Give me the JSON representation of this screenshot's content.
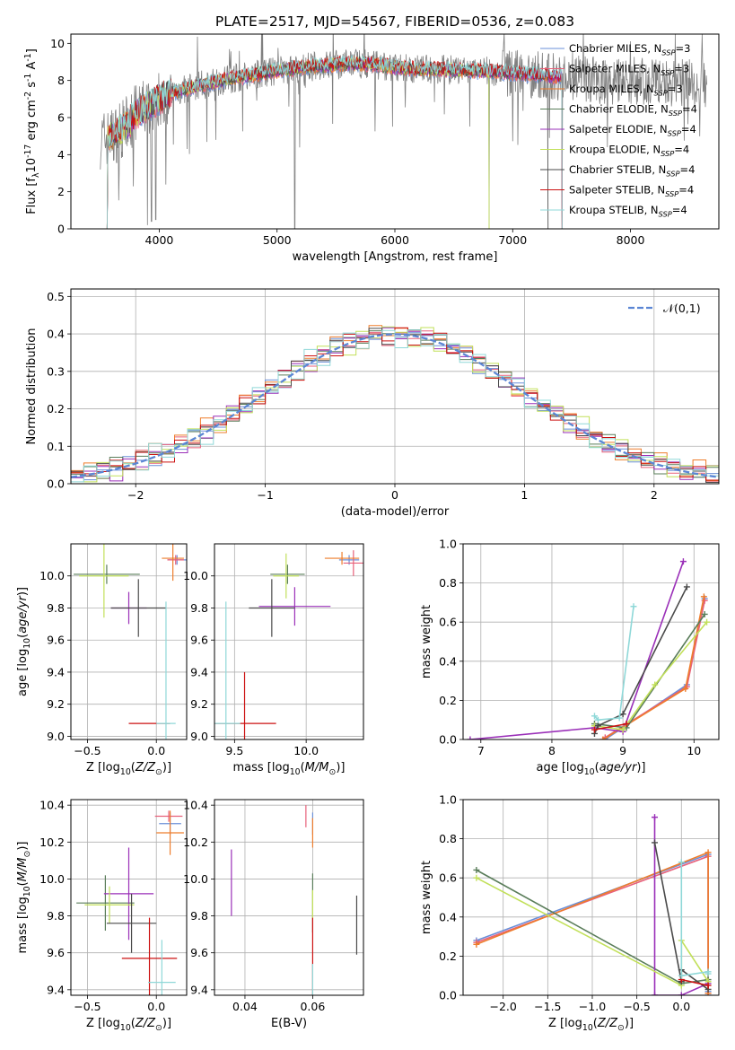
{
  "figure": {
    "title": "PLATE=2517, MJD=54567, FIBERID=0536, z=0.083"
  },
  "colors": {
    "Chabrier MILES": "#6a8fd8",
    "Salpeter MILES": "#e8607a",
    "Kroupa MILES": "#ee7d2c",
    "Chabrier ELODIE": "#5a7d5a",
    "Salpeter ELODIE": "#9a2fb8",
    "Kroupa ELODIE": "#c2e05a",
    "Chabrier STELIB": "#4a4a4a",
    "Salpeter STELIB": "#cc1111",
    "Kroupa STELIB": "#8fd8d8",
    "data": "#808080",
    "normal": "#5b86d4",
    "grid": "#b0b0b0"
  },
  "chart_data": [
    {
      "id": "spectrum",
      "type": "line",
      "title": "PLATE=2517, MJD=54567, FIBERID=0536, z=0.083",
      "xlabel": "wavelength [Angstrom, rest frame]",
      "ylabel": "Flux [f$_\\lambda$10$^{-17}$ erg cm$^{-2}$ s$^{-1}$ A$^{-1}$]",
      "xlim": [
        3250,
        8750
      ],
      "ylim": [
        0,
        10.5
      ],
      "xticks": [
        "4000",
        "5000",
        "6000",
        "7000",
        "8000"
      ],
      "yticks": [
        "0",
        "2",
        "4",
        "6",
        "8",
        "10"
      ],
      "grid": false,
      "legend_position": "right",
      "legend": [
        "Chabrier MILES, N$_{SSP}$=3",
        "Salpeter MILES, N$_{SSP}$=3",
        "Kroupa MILES, N$_{SSP}$=3",
        "Chabrier ELODIE, N$_{SSP}$=4",
        "Salpeter ELODIE, N$_{SSP}$=4",
        "Kroupa ELODIE, N$_{SSP}$=4",
        "Chabrier STELIB, N$_{SSP}$=4",
        "Salpeter STELIB, N$_{SSP}$=4",
        "Kroupa STELIB, N$_{SSP}$=4"
      ],
      "data_range": [
        3500,
        8650
      ],
      "continuum": [
        [
          3500,
          4.8
        ],
        [
          3600,
          5.0
        ],
        [
          3700,
          5.4
        ],
        [
          3800,
          6.2
        ],
        [
          3900,
          6.6
        ],
        [
          4000,
          7.0
        ],
        [
          4100,
          7.3
        ],
        [
          4200,
          7.5
        ],
        [
          4400,
          7.8
        ],
        [
          4600,
          8.1
        ],
        [
          4800,
          8.3
        ],
        [
          5000,
          8.5
        ],
        [
          5200,
          8.7
        ],
        [
          5400,
          8.8
        ],
        [
          5600,
          8.9
        ],
        [
          5800,
          8.9
        ],
        [
          6000,
          8.7
        ],
        [
          6200,
          8.6
        ],
        [
          6400,
          8.6
        ],
        [
          6600,
          8.5
        ],
        [
          6800,
          8.5
        ],
        [
          7000,
          8.4
        ],
        [
          7200,
          8.3
        ],
        [
          7400,
          8.2
        ],
        [
          7600,
          8.1
        ],
        [
          7800,
          8.0
        ],
        [
          8000,
          8.0
        ],
        [
          8200,
          7.9
        ],
        [
          8400,
          7.9
        ],
        [
          8650,
          7.8
        ]
      ],
      "model_ends": [
        7420,
        7420,
        7420,
        7420,
        7420,
        6800,
        7300,
        7420,
        7420
      ],
      "model_starts": [
        3540,
        3540,
        3540,
        3540,
        3540,
        3540,
        3540,
        3540,
        3540
      ],
      "dips": [
        [
          3934,
          0.4
        ],
        [
          3969,
          0.5
        ],
        [
          3900,
          0.2
        ],
        [
          5150,
          0
        ],
        [
          6800,
          0
        ],
        [
          7420,
          0
        ]
      ]
    },
    {
      "id": "residuals",
      "type": "line",
      "xlabel": "(data-model)/error",
      "ylabel": "Normed distribution",
      "xlim": [
        -2.5,
        2.5
      ],
      "ylim": [
        0,
        0.52
      ],
      "xticks": [
        "−2",
        "−1",
        "0",
        "1",
        "2"
      ],
      "yticks": [
        "0.0",
        "0.1",
        "0.2",
        "0.3",
        "0.4",
        "0.5"
      ],
      "grid": true,
      "legend_position": "top-right",
      "legend": [
        "$\\mathcal{N}(0,1)$"
      ],
      "bin_width": 0.1,
      "bin_start": -2.5,
      "noise": [
        0.012,
        -0.008,
        0.018,
        -0.015,
        0.02,
        0.005,
        -0.022,
        0.015,
        -0.01,
        0.025,
        0.008,
        -0.018,
        0.03,
        -0.012,
        0.01,
        0.022,
        -0.025,
        0.014,
        0.006,
        -0.02,
        0.028,
        -0.005,
        0.018,
        -0.014,
        0.032,
        -0.02,
        0.01,
        0.024,
        -0.016,
        0.008,
        0.02,
        -0.028,
        0.016,
        -0.01,
        0.022,
        0.004,
        -0.018,
        0.026,
        -0.012,
        0.014,
        0.02,
        -0.024,
        0.01,
        -0.006,
        0.018,
        0.012,
        -0.02,
        0.024,
        -0.014,
        0.008
      ]
    },
    {
      "id": "age_vs_Z",
      "type": "scatter",
      "xlabel": "Z [log$_{10}$($Z/Z_\\odot$)]",
      "ylabel": "age  [log$_{10}$($age/yr$)]",
      "xlim": [
        -0.62,
        0.22
      ],
      "ylim": [
        8.98,
        10.2
      ],
      "xticks": [
        "−0.5",
        "0.0"
      ],
      "yticks": [
        "9.0",
        "9.2",
        "9.4",
        "9.6",
        "9.8",
        "10.0"
      ],
      "grid": true,
      "points": [
        {
          "model": "Chabrier MILES",
          "x": 0.15,
          "y": 10.1,
          "xerr": 0.07,
          "yerr": 0.03
        },
        {
          "model": "Salpeter MILES",
          "x": 0.14,
          "y": 10.1,
          "xerr": 0.06,
          "yerr": 0.03
        },
        {
          "model": "Kroupa MILES",
          "x": 0.12,
          "y": 10.11,
          "xerr": 0.08,
          "yerr": 0.14
        },
        {
          "model": "Chabrier ELODIE",
          "x": -0.36,
          "y": 10.01,
          "xerr": 0.24,
          "yerr": 0.06
        },
        {
          "model": "Salpeter ELODIE",
          "x": -0.2,
          "y": 9.8,
          "xerr": 0.13,
          "yerr": 0.1
        },
        {
          "model": "Kroupa ELODIE",
          "x": -0.38,
          "y": 10.0,
          "xerr": 0.18,
          "yerr": 0.26
        },
        {
          "model": "Chabrier STELIB",
          "x": -0.13,
          "y": 9.8,
          "xerr": 0.2,
          "yerr": 0.18
        },
        {
          "model": "Salpeter STELIB",
          "x": -0.05,
          "y": 9.08,
          "xerr": 0.15,
          "yerr": 0.0
        },
        {
          "model": "Kroupa STELIB",
          "x": 0.07,
          "y": 9.08,
          "xerr": 0.07,
          "yerr": 0.76
        }
      ]
    },
    {
      "id": "age_vs_mass",
      "type": "scatter",
      "xlabel": "mass [log$_{10}$($M/M_\\odot$)]",
      "ylabel": "",
      "xlim": [
        9.36,
        10.4
      ],
      "ylim": [
        8.98,
        10.2
      ],
      "xticks": [
        "9.5",
        "10.0"
      ],
      "yticks": [
        "9.0",
        "9.2",
        "9.4",
        "9.6",
        "9.8",
        "10.0"
      ],
      "grid": true,
      "points": [
        {
          "model": "Chabrier MILES",
          "x": 10.3,
          "y": 10.1,
          "xerr": 0.07,
          "yerr": 0.03
        },
        {
          "model": "Salpeter MILES",
          "x": 10.33,
          "y": 10.08,
          "xerr": 0.07,
          "yerr": 0.08
        },
        {
          "model": "Kroupa MILES",
          "x": 10.25,
          "y": 10.11,
          "xerr": 0.12,
          "yerr": 0.04
        },
        {
          "model": "Chabrier ELODIE",
          "x": 9.87,
          "y": 10.01,
          "xerr": 0.12,
          "yerr": 0.06
        },
        {
          "model": "Salpeter ELODIE",
          "x": 9.92,
          "y": 9.81,
          "xerr": 0.25,
          "yerr": 0.12
        },
        {
          "model": "Kroupa ELODIE",
          "x": 9.86,
          "y": 10.0,
          "xerr": 0.09,
          "yerr": 0.14
        },
        {
          "model": "Chabrier STELIB",
          "x": 9.76,
          "y": 9.8,
          "xerr": 0.16,
          "yerr": 0.18
        },
        {
          "model": "Salpeter STELIB",
          "x": 9.57,
          "y": 9.08,
          "xerr": 0.22,
          "yerr": 0.32
        },
        {
          "model": "Kroupa STELIB",
          "x": 9.44,
          "y": 9.08,
          "xerr": 0.1,
          "yerr": 0.76
        }
      ]
    },
    {
      "id": "weight_vs_age",
      "type": "line",
      "xlabel": "age  [log$_{10}$($age/yr$)]",
      "ylabel": "mass weight",
      "xlim": [
        6.75,
        10.35
      ],
      "ylim": [
        0,
        1.0
      ],
      "xticks": [
        "7",
        "8",
        "9",
        "10"
      ],
      "yticks": [
        "0.0",
        "0.2",
        "0.4",
        "0.6",
        "0.8",
        "1.0"
      ],
      "grid": true,
      "series": [
        {
          "model": "Chabrier MILES",
          "x": [
            8.75,
            9.9,
            10.15
          ],
          "y": [
            0.0,
            0.28,
            0.72
          ]
        },
        {
          "model": "Salpeter MILES",
          "x": [
            8.75,
            9.9,
            10.15
          ],
          "y": [
            0.01,
            0.27,
            0.71
          ]
        },
        {
          "model": "Kroupa MILES",
          "x": [
            8.72,
            9.88,
            10.14
          ],
          "y": [
            0.0,
            0.26,
            0.73
          ]
        },
        {
          "model": "Chabrier ELODIE",
          "x": [
            8.6,
            9.05,
            10.15
          ],
          "y": [
            0.08,
            0.06,
            0.64
          ]
        },
        {
          "model": "Salpeter ELODIE",
          "x": [
            6.85,
            8.6,
            9.0,
            9.85
          ],
          "y": [
            0.0,
            0.06,
            0.04,
            0.91
          ]
        },
        {
          "model": "Kroupa ELODIE",
          "x": [
            8.6,
            9.0,
            9.45,
            10.18
          ],
          "y": [
            0.07,
            0.05,
            0.28,
            0.6
          ]
        },
        {
          "model": "Chabrier STELIB",
          "x": [
            8.6,
            8.65,
            9.0,
            9.9
          ],
          "y": [
            0.03,
            0.07,
            0.13,
            0.78
          ]
        },
        {
          "model": "Salpeter STELIB",
          "x": [
            8.6,
            9.05
          ],
          "y": [
            0.05,
            0.08
          ]
        },
        {
          "model": "Kroupa STELIB",
          "x": [
            8.6,
            8.65,
            8.95,
            9.15
          ],
          "y": [
            0.12,
            0.1,
            0.11,
            0.68
          ]
        }
      ]
    },
    {
      "id": "mass_vs_Z",
      "type": "scatter",
      "xlabel": "Z [log$_{10}$($Z/Z_\\odot$)]",
      "ylabel": "mass [log$_{10}$($M/M_\\odot$)]",
      "xlim": [
        -0.62,
        0.22
      ],
      "ylim": [
        9.37,
        10.43
      ],
      "xticks": [
        "−0.5",
        "0.0"
      ],
      "yticks": [
        "9.4",
        "9.6",
        "9.8",
        "10.0",
        "10.2",
        "10.4"
      ],
      "grid": true,
      "points": [
        {
          "model": "Chabrier MILES",
          "x": 0.1,
          "y": 10.3,
          "xerr": 0.08,
          "yerr": 0.06
        },
        {
          "model": "Salpeter MILES",
          "x": 0.09,
          "y": 10.34,
          "xerr": 0.1,
          "yerr": 0.03
        },
        {
          "model": "Kroupa MILES",
          "x": 0.1,
          "y": 10.25,
          "xerr": 0.1,
          "yerr": 0.12
        },
        {
          "model": "Chabrier ELODIE",
          "x": -0.37,
          "y": 9.87,
          "xerr": 0.21,
          "yerr": 0.15
        },
        {
          "model": "Salpeter ELODIE",
          "x": -0.2,
          "y": 9.92,
          "xerr": 0.18,
          "yerr": 0.25
        },
        {
          "model": "Kroupa ELODIE",
          "x": -0.34,
          "y": 9.86,
          "xerr": 0.18,
          "yerr": 0.1
        },
        {
          "model": "Chabrier STELIB",
          "x": -0.18,
          "y": 9.76,
          "xerr": 0.18,
          "yerr": 0.16
        },
        {
          "model": "Salpeter STELIB",
          "x": -0.05,
          "y": 9.57,
          "xerr": 0.2,
          "yerr": 0.22
        },
        {
          "model": "Kroupa STELIB",
          "x": 0.04,
          "y": 9.44,
          "xerr": 0.1,
          "yerr": 0.23
        }
      ]
    },
    {
      "id": "mass_vs_ebv",
      "type": "scatter",
      "xlabel": "E(B-V)",
      "ylabel": "",
      "xlim": [
        0.031,
        0.075
      ],
      "ylim": [
        9.37,
        10.43
      ],
      "xticks": [
        "0.04",
        "0.06"
      ],
      "yticks": [
        "9.4",
        "9.6",
        "9.8",
        "10.0",
        "10.2",
        "10.4"
      ],
      "grid": true,
      "points": [
        {
          "model": "Chabrier MILES",
          "x": 0.06,
          "y": 10.3,
          "xerr": 0,
          "yerr": 0.06
        },
        {
          "model": "Salpeter MILES",
          "x": 0.058,
          "y": 10.34,
          "xerr": 0,
          "yerr": 0.06
        },
        {
          "model": "Kroupa MILES",
          "x": 0.06,
          "y": 10.25,
          "xerr": 0,
          "yerr": 0.08
        },
        {
          "model": "Chabrier ELODIE",
          "x": 0.06,
          "y": 9.87,
          "xerr": 0,
          "yerr": 0.16
        },
        {
          "model": "Salpeter ELODIE",
          "x": 0.036,
          "y": 9.98,
          "xerr": 0,
          "yerr": 0.18
        },
        {
          "model": "Kroupa ELODIE",
          "x": 0.06,
          "y": 9.86,
          "xerr": 0,
          "yerr": 0.08
        },
        {
          "model": "Chabrier STELIB",
          "x": 0.073,
          "y": 9.75,
          "xerr": 0,
          "yerr": 0.16
        },
        {
          "model": "Salpeter STELIB",
          "x": 0.06,
          "y": 9.57,
          "xerr": 0,
          "yerr": 0.22
        },
        {
          "model": "Kroupa STELIB",
          "x": 0.06,
          "y": 9.44,
          "xerr": 0,
          "yerr": 0.1
        }
      ]
    },
    {
      "id": "weight_vs_Z",
      "type": "line",
      "xlabel": "Z [log$_{10}$($Z/Z_\\odot$)]",
      "ylabel": "mass weight",
      "xlim": [
        -2.45,
        0.42
      ],
      "ylim": [
        0,
        1.0
      ],
      "xticks": [
        "−2.0",
        "−1.5",
        "−1.0",
        "−0.5",
        "0.0"
      ],
      "yticks": [
        "0.0",
        "0.2",
        "0.4",
        "0.6",
        "0.8",
        "1.0"
      ],
      "grid": true,
      "series": [
        {
          "model": "Chabrier MILES",
          "x": [
            -2.3,
            0.3,
            0.3,
            0.3
          ],
          "y": [
            0.28,
            0.72,
            0.02,
            0.0
          ]
        },
        {
          "model": "Salpeter MILES",
          "x": [
            -2.3,
            0.3,
            0.3
          ],
          "y": [
            0.27,
            0.71,
            0.01
          ]
        },
        {
          "model": "Kroupa MILES",
          "x": [
            -2.3,
            0.3,
            0.3
          ],
          "y": [
            0.26,
            0.73,
            0.01
          ]
        },
        {
          "model": "Chabrier ELODIE",
          "x": [
            -2.3,
            0.0,
            0.3
          ],
          "y": [
            0.64,
            0.06,
            0.08
          ]
        },
        {
          "model": "Salpeter ELODIE",
          "x": [
            -0.3,
            -0.3,
            0.0,
            0.3
          ],
          "y": [
            0.91,
            0.0,
            0.0,
            0.06
          ]
        },
        {
          "model": "Kroupa ELODIE",
          "x": [
            -2.3,
            0.0,
            0.0,
            0.3
          ],
          "y": [
            0.6,
            0.05,
            0.28,
            0.07
          ]
        },
        {
          "model": "Chabrier STELIB",
          "x": [
            -0.3,
            0.0,
            0.0,
            0.3
          ],
          "y": [
            0.78,
            0.07,
            0.13,
            0.03
          ]
        },
        {
          "model": "Salpeter STELIB",
          "x": [
            0.0,
            0.3
          ],
          "y": [
            0.08,
            0.05
          ]
        },
        {
          "model": "Kroupa STELIB",
          "x": [
            0.0,
            0.0,
            0.3,
            0.3
          ],
          "y": [
            0.68,
            0.1,
            0.12,
            0.11
          ]
        }
      ]
    }
  ]
}
